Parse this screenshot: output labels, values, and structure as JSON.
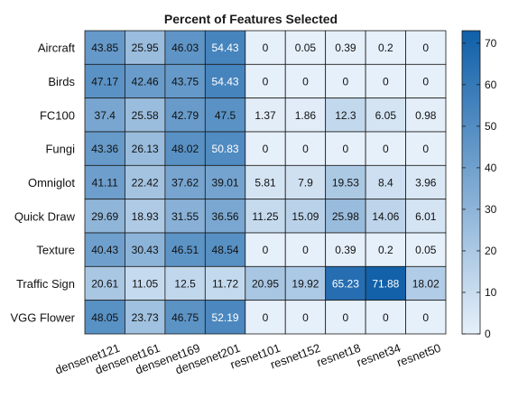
{
  "chart_data": {
    "type": "heatmap",
    "title": "Percent of Features Selected",
    "rows": [
      "Aircraft",
      "Birds",
      "FC100",
      "Fungi",
      "Omniglot",
      "Quick Draw",
      "Texture",
      "Traffic Sign",
      "VGG Flower"
    ],
    "columns": [
      "densenet121",
      "densenet161",
      "densenet169",
      "densenet201",
      "resnet101",
      "resnet152",
      "resnet18",
      "resnet34",
      "resnet50"
    ],
    "values": [
      [
        43.85,
        25.95,
        46.03,
        54.43,
        0,
        0.05,
        0.39,
        0.2,
        0
      ],
      [
        47.17,
        42.46,
        43.75,
        54.43,
        0,
        0,
        0,
        0,
        0
      ],
      [
        37.4,
        25.58,
        42.79,
        47.5,
        1.37,
        1.86,
        12.3,
        6.05,
        0.98
      ],
      [
        43.36,
        26.13,
        48.02,
        50.83,
        0,
        0,
        0,
        0,
        0
      ],
      [
        41.11,
        22.42,
        37.62,
        39.01,
        5.81,
        7.9,
        19.53,
        8.4,
        3.96
      ],
      [
        29.69,
        18.93,
        31.55,
        36.56,
        11.25,
        15.09,
        25.98,
        14.06,
        6.01
      ],
      [
        40.43,
        30.43,
        46.51,
        48.54,
        0,
        0,
        0.39,
        0.2,
        0.05
      ],
      [
        20.61,
        11.05,
        12.5,
        11.72,
        20.95,
        19.92,
        65.23,
        71.88,
        18.02
      ],
      [
        48.05,
        23.73,
        46.75,
        52.19,
        0,
        0,
        0,
        0,
        0
      ]
    ],
    "cell_labels": [
      [
        "43.85",
        "25.95",
        "46.03",
        "54.43",
        "0",
        "0.05",
        "0.39",
        "0.2",
        "0"
      ],
      [
        "47.17",
        "42.46",
        "43.75",
        "54.43",
        "0",
        "0",
        "0",
        "0",
        "0"
      ],
      [
        "37.4",
        "25.58",
        "42.79",
        "47.5",
        "1.37",
        "1.86",
        "12.3",
        "6.05",
        "0.98"
      ],
      [
        "43.36",
        "26.13",
        "48.02",
        "50.83",
        "0",
        "0",
        "0",
        "0",
        "0"
      ],
      [
        "41.11",
        "22.42",
        "37.62",
        "39.01",
        "5.81",
        "7.9",
        "19.53",
        "8.4",
        "3.96"
      ],
      [
        "29.69",
        "18.93",
        "31.55",
        "36.56",
        "11.25",
        "15.09",
        "25.98",
        "14.06",
        "6.01"
      ],
      [
        "40.43",
        "30.43",
        "46.51",
        "48.54",
        "0",
        "0",
        "0.39",
        "0.2",
        "0.05"
      ],
      [
        "20.61",
        "11.05",
        "12.5",
        "11.72",
        "20.95",
        "19.92",
        "65.23",
        "71.88",
        "18.02"
      ],
      [
        "48.05",
        "23.73",
        "46.75",
        "52.19",
        "0",
        "0",
        "0",
        "0",
        "0"
      ]
    ],
    "colorbar": {
      "range": [
        0,
        73
      ],
      "ticks": [
        0,
        10,
        20,
        30,
        40,
        50,
        60,
        70
      ],
      "tick_labels": [
        "0",
        "10",
        "20",
        "30",
        "40",
        "50",
        "60",
        "70"
      ],
      "color_low": "#e6f0fa",
      "color_high": "#0f5fa8"
    },
    "grid": true,
    "legend": "right"
  }
}
